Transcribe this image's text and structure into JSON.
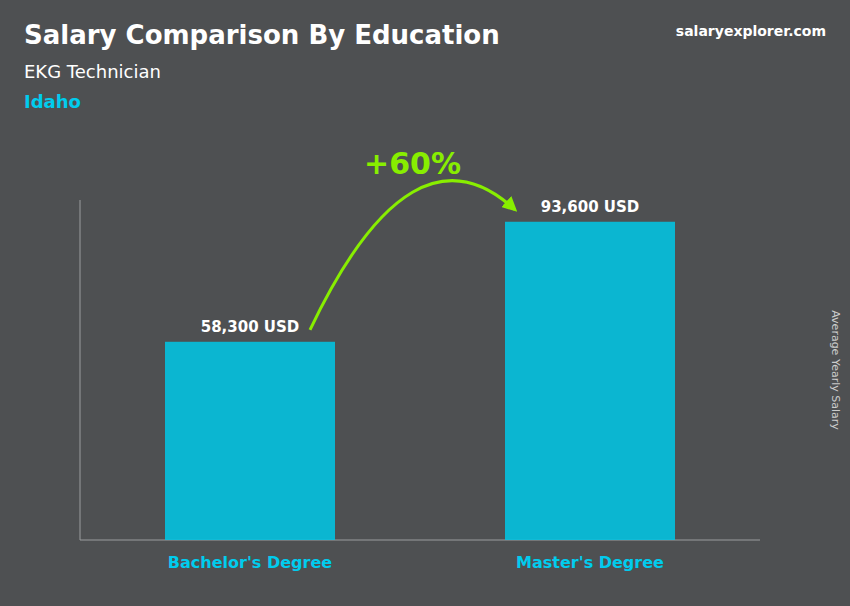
{
  "chart_data": {
    "type": "bar",
    "title": "Salary Comparison By Education",
    "subtitle": "EKG Technician",
    "annotations": [
      "Idaho",
      "+60%",
      "salaryexplorer.com"
    ],
    "y_label": "Average Yearly Salary",
    "categories": [
      "Bachelor's Degree",
      "Master's Degree"
    ],
    "values": [
      58300,
      93600
    ],
    "value_labels": [
      "58,300 USD",
      "93,600 USD"
    ],
    "color": "#00c8e8",
    "ylim": [
      0,
      100000
    ],
    "data_labels": true,
    "tick_labels": "x",
    "grid": false
  }
}
